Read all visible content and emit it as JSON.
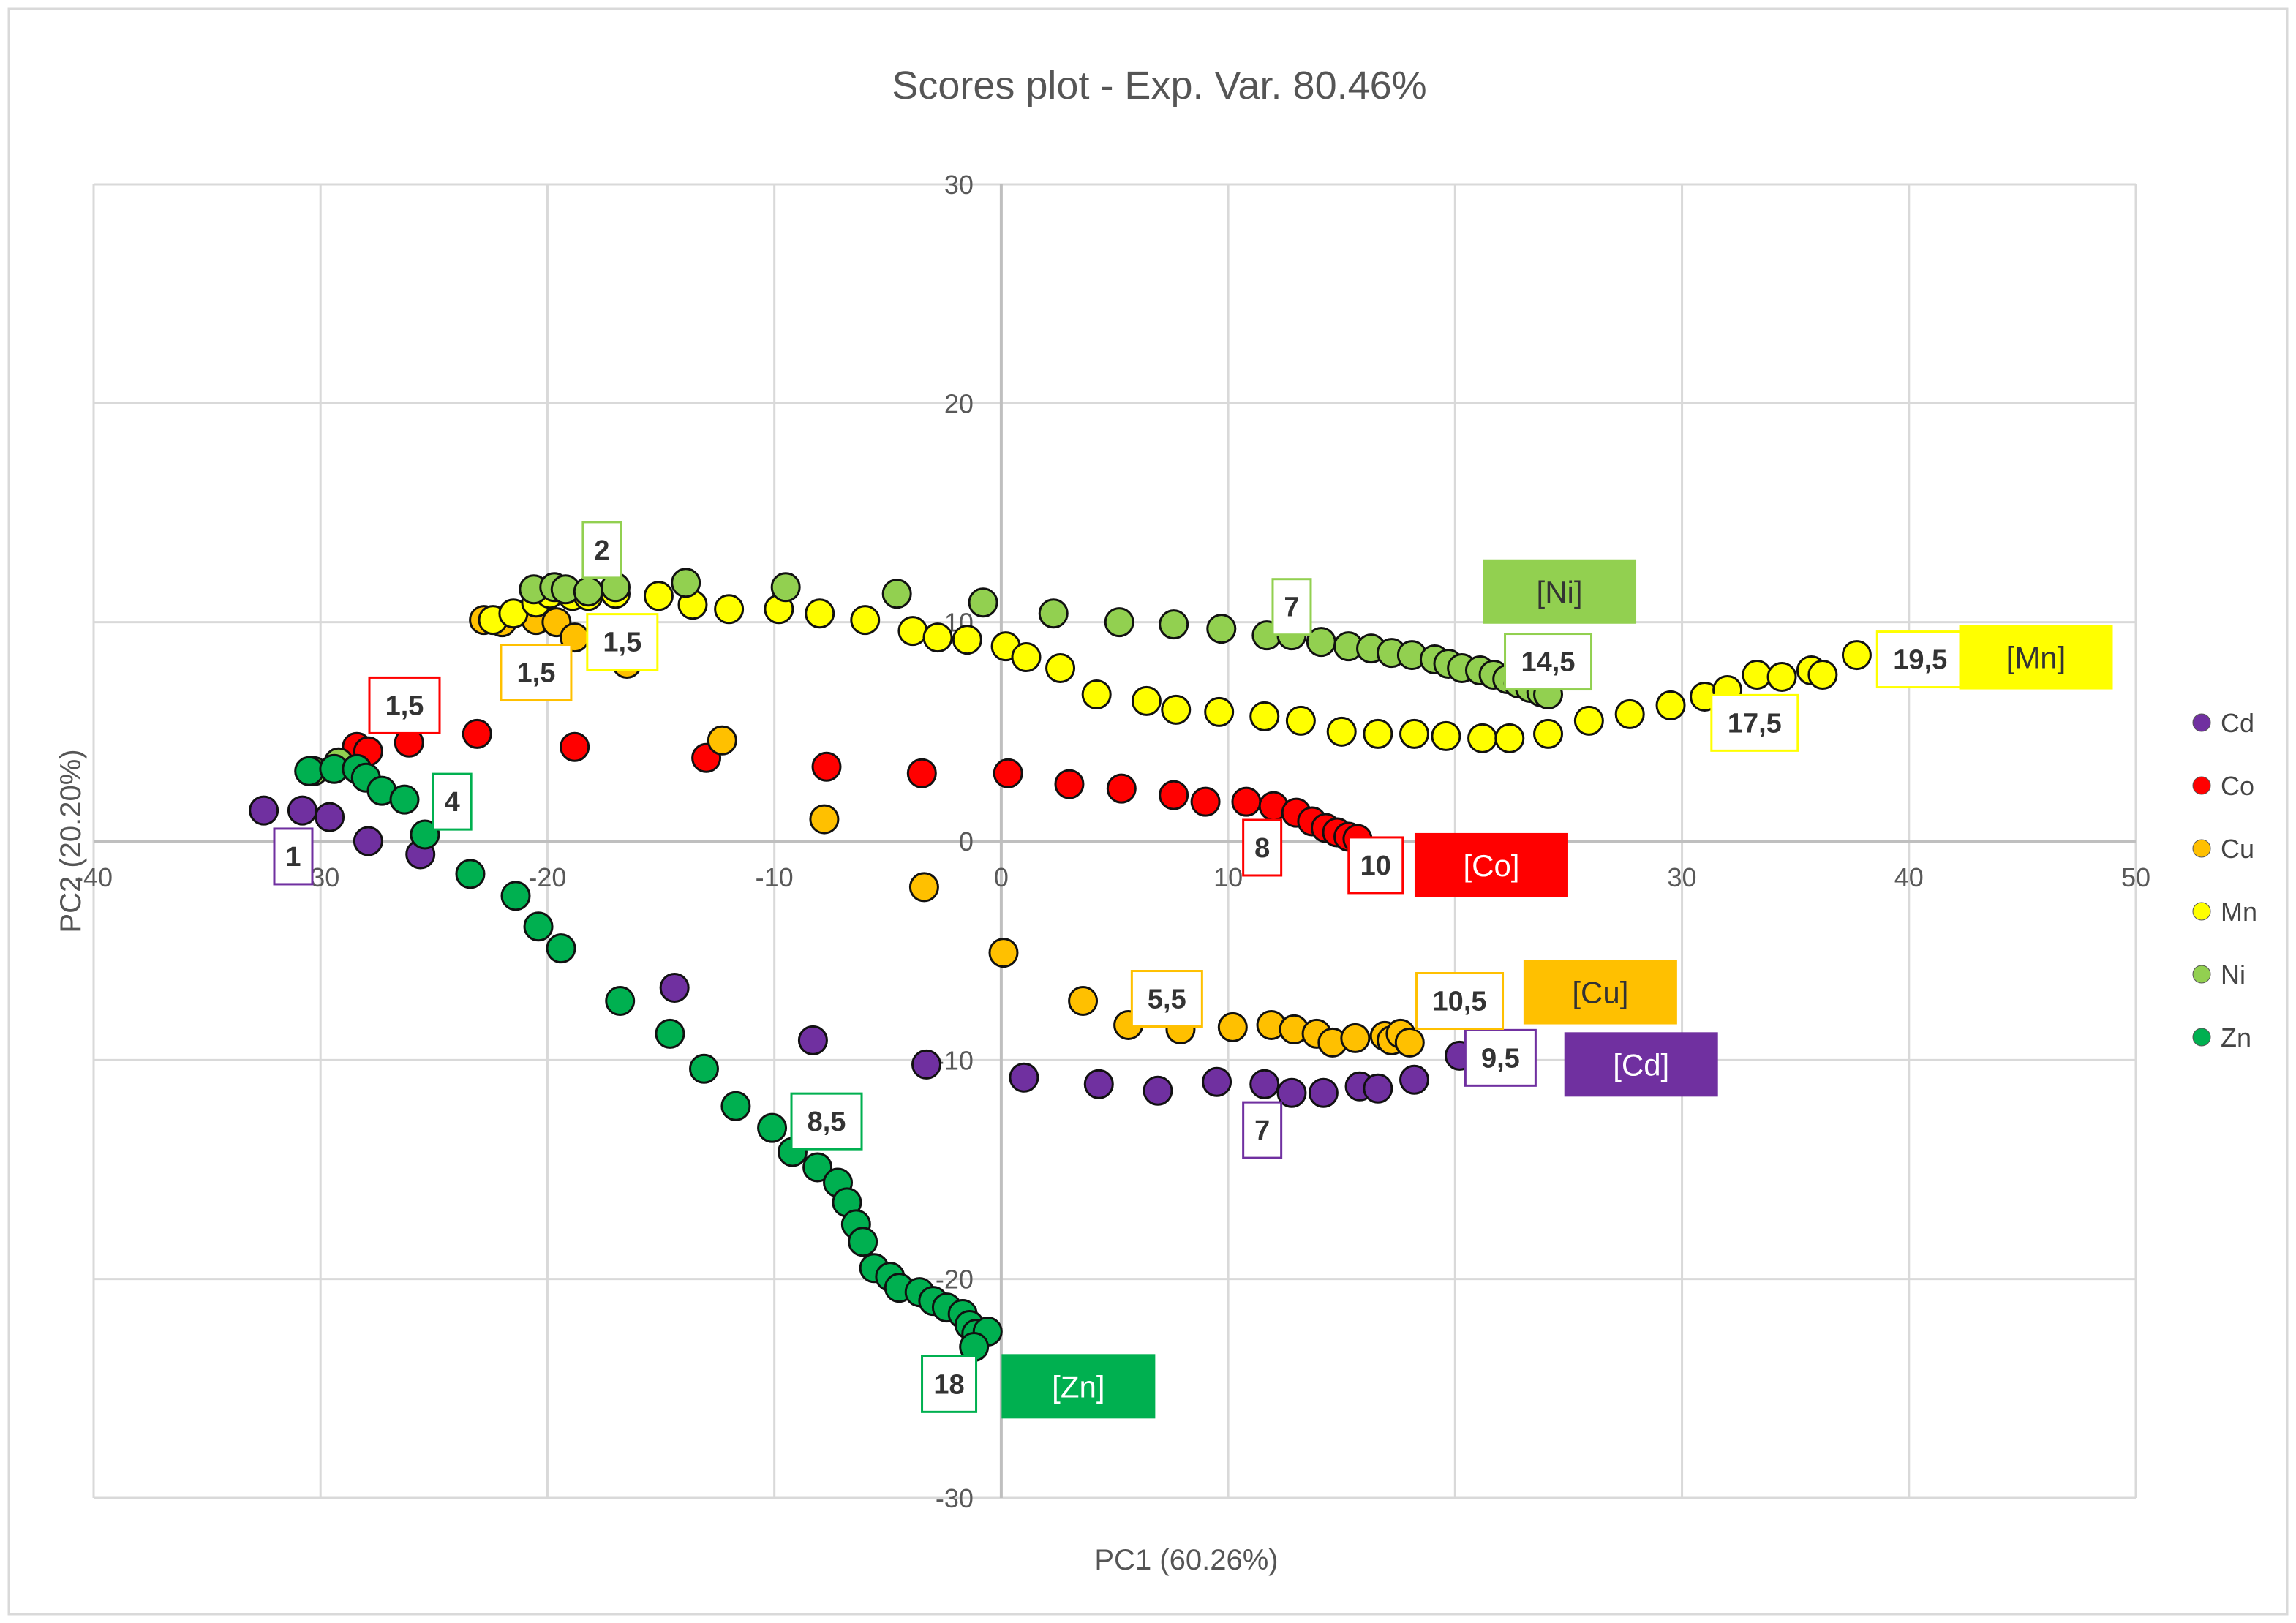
{
  "chart_data": {
    "type": "scatter",
    "title": "Scores plot - Exp. Var. 80.46%",
    "xlabel": "PC1 (60.26%)",
    "ylabel": "PC2 (20.20%)",
    "xlim": [
      -40,
      50
    ],
    "ylim": [
      -30,
      30
    ],
    "x_ticks": [
      -40,
      -30,
      -20,
      -10,
      0,
      10,
      20,
      30,
      40,
      50
    ],
    "y_ticks": [
      -30,
      -20,
      -10,
      0,
      10,
      20,
      30
    ],
    "x_tick_labels": [
      "-40",
      "-30",
      "-20",
      "-10",
      "0",
      "10",
      "20",
      "30",
      "40",
      "50"
    ],
    "y_tick_labels": [
      "-30",
      "-20",
      "-10",
      "0",
      "10",
      "20",
      "30"
    ],
    "grid": true,
    "legend_position": "right",
    "series": [
      {
        "name": "Cd",
        "color": "#7030a0",
        "points": [
          [
            -32.5,
            1.4
          ],
          [
            -30.8,
            1.4
          ],
          [
            -29.6,
            1.1
          ],
          [
            -27.9,
            0
          ],
          [
            -25.6,
            -0.6
          ],
          [
            -14.4,
            -6.7
          ],
          [
            -8.3,
            -9.1
          ],
          [
            -3.3,
            -10.2
          ],
          [
            1.0,
            -10.8
          ],
          [
            4.3,
            -11.1
          ],
          [
            6.9,
            -11.4
          ],
          [
            9.5,
            -11.0
          ],
          [
            11.6,
            -11.1
          ],
          [
            12.8,
            -11.5
          ],
          [
            14.2,
            -11.5
          ],
          [
            15.8,
            -11.2
          ],
          [
            16.6,
            -11.3
          ],
          [
            18.2,
            -10.9
          ],
          [
            20.2,
            -9.8
          ]
        ]
      },
      {
        "name": "Co",
        "color": "#ff0000",
        "points": [
          [
            -28.4,
            4.3
          ],
          [
            -27.9,
            4.1
          ],
          [
            -26.1,
            4.5
          ],
          [
            -23.1,
            4.9
          ],
          [
            -18.8,
            4.3
          ],
          [
            -13.0,
            3.8
          ],
          [
            -7.7,
            3.4
          ],
          [
            -3.5,
            3.1
          ],
          [
            0.3,
            3.1
          ],
          [
            3.0,
            2.6
          ],
          [
            5.3,
            2.4
          ],
          [
            7.6,
            2.1
          ],
          [
            9.0,
            1.8
          ],
          [
            10.8,
            1.8
          ],
          [
            12.0,
            1.6
          ],
          [
            13.0,
            1.3
          ],
          [
            13.7,
            0.9
          ],
          [
            14.3,
            0.6
          ],
          [
            14.8,
            0.4
          ],
          [
            15.3,
            0.2
          ],
          [
            15.7,
            0.1
          ]
        ]
      },
      {
        "name": "Cu",
        "color": "#ffc000",
        "points": [
          [
            -22.8,
            10.1
          ],
          [
            -22.0,
            10.0
          ],
          [
            -20.5,
            10.1
          ],
          [
            -19.6,
            10.0
          ],
          [
            -18.8,
            9.3
          ],
          [
            -16.5,
            8.1
          ],
          [
            -12.3,
            4.6
          ],
          [
            -7.8,
            1.0
          ],
          [
            -3.4,
            -2.1
          ],
          [
            0.1,
            -5.1
          ],
          [
            3.6,
            -7.3
          ],
          [
            5.6,
            -8.4
          ],
          [
            7.9,
            -8.6
          ],
          [
            10.2,
            -8.5
          ],
          [
            11.9,
            -8.4
          ],
          [
            12.9,
            -8.6
          ],
          [
            13.9,
            -8.8
          ],
          [
            14.6,
            -9.2
          ],
          [
            15.6,
            -9.0
          ],
          [
            16.9,
            -8.9
          ],
          [
            17.2,
            -9.1
          ],
          [
            17.6,
            -8.8
          ],
          [
            18.0,
            -9.2
          ]
        ]
      },
      {
        "name": "Mn",
        "color": "#ffff00",
        "points": [
          [
            -22.4,
            10.1
          ],
          [
            -21.5,
            10.4
          ],
          [
            -20.5,
            10.9
          ],
          [
            -19.9,
            11.3
          ],
          [
            -18.9,
            11.2
          ],
          [
            -18.2,
            11.2
          ],
          [
            -17.0,
            11.3
          ],
          [
            -15.1,
            11.2
          ],
          [
            -13.6,
            10.8
          ],
          [
            -12.0,
            10.6
          ],
          [
            -9.8,
            10.6
          ],
          [
            -8.0,
            10.4
          ],
          [
            -6.0,
            10.1
          ],
          [
            -3.9,
            9.6
          ],
          [
            -2.8,
            9.3
          ],
          [
            -1.5,
            9.2
          ],
          [
            0.2,
            8.9
          ],
          [
            1.1,
            8.4
          ],
          [
            2.6,
            7.9
          ],
          [
            4.2,
            6.7
          ],
          [
            6.4,
            6.4
          ],
          [
            7.7,
            6.0
          ],
          [
            9.6,
            5.9
          ],
          [
            11.6,
            5.7
          ],
          [
            13.2,
            5.5
          ],
          [
            15.0,
            5.0
          ],
          [
            16.6,
            4.9
          ],
          [
            18.2,
            4.9
          ],
          [
            19.6,
            4.8
          ],
          [
            21.2,
            4.7
          ],
          [
            22.4,
            4.7
          ],
          [
            24.1,
            4.9
          ],
          [
            25.9,
            5.5
          ],
          [
            27.7,
            5.8
          ],
          [
            29.5,
            6.2
          ],
          [
            31.0,
            6.6
          ],
          [
            32.0,
            6.9
          ],
          [
            33.3,
            7.6
          ],
          [
            34.4,
            7.5
          ],
          [
            35.7,
            7.8
          ],
          [
            36.2,
            7.6
          ],
          [
            37.7,
            8.5
          ]
        ]
      },
      {
        "name": "Ni",
        "color": "#92d050",
        "points": [
          [
            -30.3,
            3.2
          ],
          [
            -29.2,
            3.6
          ],
          [
            -20.6,
            11.5
          ],
          [
            -19.7,
            11.6
          ],
          [
            -19.2,
            11.5
          ],
          [
            -18.2,
            11.4
          ],
          [
            -17.0,
            11.6
          ],
          [
            -13.9,
            11.8
          ],
          [
            -9.5,
            11.6
          ],
          [
            -4.6,
            11.3
          ],
          [
            -0.8,
            10.9
          ],
          [
            2.3,
            10.4
          ],
          [
            5.2,
            10.0
          ],
          [
            7.6,
            9.9
          ],
          [
            9.7,
            9.7
          ],
          [
            11.7,
            9.4
          ],
          [
            12.8,
            9.4
          ],
          [
            14.1,
            9.1
          ],
          [
            15.3,
            8.9
          ],
          [
            16.3,
            8.8
          ],
          [
            17.2,
            8.6
          ],
          [
            18.1,
            8.5
          ],
          [
            19.1,
            8.3
          ],
          [
            19.7,
            8.1
          ],
          [
            20.3,
            7.9
          ],
          [
            21.1,
            7.8
          ],
          [
            21.7,
            7.6
          ],
          [
            22.3,
            7.4
          ],
          [
            22.8,
            7.2
          ],
          [
            23.3,
            7.0
          ],
          [
            23.8,
            6.8
          ],
          [
            24.1,
            6.7
          ]
        ]
      },
      {
        "name": "Zn",
        "color": "#00b050",
        "points": [
          [
            -30.5,
            3.2
          ],
          [
            -29.4,
            3.3
          ],
          [
            -28.4,
            3.3
          ],
          [
            -28.0,
            2.9
          ],
          [
            -27.3,
            2.3
          ],
          [
            -26.3,
            1.9
          ],
          [
            -25.4,
            0.3
          ],
          [
            -23.4,
            -1.5
          ],
          [
            -21.4,
            -2.5
          ],
          [
            -20.4,
            -3.9
          ],
          [
            -19.4,
            -4.9
          ],
          [
            -16.8,
            -7.3
          ],
          [
            -14.6,
            -8.8
          ],
          [
            -13.1,
            -10.4
          ],
          [
            -11.7,
            -12.1
          ],
          [
            -10.1,
            -13.1
          ],
          [
            -9.2,
            -14.2
          ],
          [
            -8.1,
            -14.9
          ],
          [
            -7.2,
            -15.6
          ],
          [
            -6.8,
            -16.5
          ],
          [
            -6.4,
            -17.5
          ],
          [
            -6.1,
            -18.3
          ],
          [
            -5.6,
            -19.5
          ],
          [
            -4.9,
            -19.9
          ],
          [
            -4.5,
            -20.4
          ],
          [
            -3.6,
            -20.6
          ],
          [
            -3.0,
            -21.0
          ],
          [
            -2.4,
            -21.3
          ],
          [
            -1.7,
            -21.6
          ],
          [
            -1.4,
            -22.1
          ],
          [
            -1.1,
            -22.5
          ],
          [
            -0.6,
            -22.4
          ],
          [
            -1.2,
            -23.1
          ]
        ]
      }
    ],
    "annotations": [
      {
        "text": "1",
        "x": -31.2,
        "y": -0.7,
        "color": "#7030a0"
      },
      {
        "text": "7",
        "x": 11.5,
        "y": -13.2,
        "color": "#7030a0"
      },
      {
        "text": "9,5",
        "x": 22.0,
        "y": -9.9,
        "color": "#7030a0"
      },
      {
        "text": "1,5",
        "x": -26.3,
        "y": 6.2,
        "color": "#ff0000"
      },
      {
        "text": "8",
        "x": 11.5,
        "y": -0.3,
        "color": "#ff0000"
      },
      {
        "text": "10",
        "x": 16.5,
        "y": -1.1,
        "color": "#ff0000"
      },
      {
        "text": "1,5",
        "x": -20.5,
        "y": 7.7,
        "color": "#ffc000"
      },
      {
        "text": "5,5",
        "x": 7.3,
        "y": -7.2,
        "color": "#ffc000"
      },
      {
        "text": "10,5",
        "x": 20.2,
        "y": -7.3,
        "color": "#ffc000"
      },
      {
        "text": "1,5",
        "x": -16.7,
        "y": 9.1,
        "color": "#ffff00"
      },
      {
        "text": "17,5",
        "x": 33.2,
        "y": 5.4,
        "color": "#ffff00"
      },
      {
        "text": "19,5",
        "x": 40.5,
        "y": 8.3,
        "color": "#ffff00"
      },
      {
        "text": "2",
        "x": -17.6,
        "y": 13.3,
        "color": "#92d050"
      },
      {
        "text": "7",
        "x": 12.8,
        "y": 10.7,
        "color": "#92d050"
      },
      {
        "text": "14,5",
        "x": 24.1,
        "y": 8.2,
        "color": "#92d050"
      },
      {
        "text": "4",
        "x": -24.2,
        "y": 1.8,
        "color": "#00b050"
      },
      {
        "text": "8,5",
        "x": -7.7,
        "y": -12.8,
        "color": "#00b050"
      },
      {
        "text": "18",
        "x": -2.3,
        "y": -24.8,
        "color": "#00b050"
      }
    ],
    "big_labels": [
      {
        "text": "[Ni]",
        "x": 24.6,
        "y": 11.4,
        "bg": "#92d050",
        "fg": "#333333"
      },
      {
        "text": "[Mn]",
        "x": 45.6,
        "y": 8.4,
        "bg": "#ffff00",
        "fg": "#333333"
      },
      {
        "text": "[Co]",
        "x": 21.6,
        "y": -1.1,
        "bg": "#ff0000",
        "fg": "#ffffff"
      },
      {
        "text": "[Cu]",
        "x": 26.4,
        "y": -6.9,
        "bg": "#ffc000",
        "fg": "#333333"
      },
      {
        "text": "[Cd]",
        "x": 28.2,
        "y": -10.2,
        "bg": "#7030a0",
        "fg": "#ffffff"
      },
      {
        "text": "[Zn]",
        "x": 3.4,
        "y": -24.9,
        "bg": "#00b050",
        "fg": "#ffffff"
      }
    ]
  }
}
